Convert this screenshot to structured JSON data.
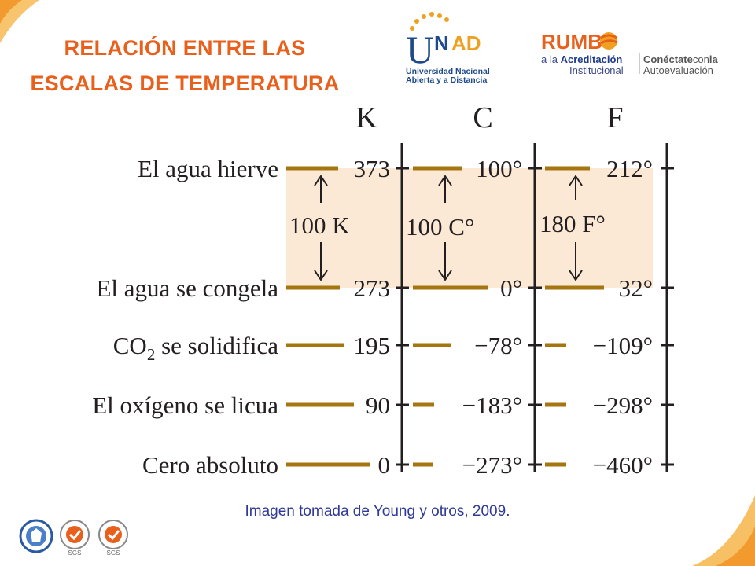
{
  "title": {
    "line1": "RELACIÓN ENTRE LAS",
    "line2": "ESCALAS DE TEMPERATURA"
  },
  "logos": {
    "unad_letters": "UNAD",
    "unad_line1": "Universidad Nacional",
    "unad_line2": "Abierta y a Distancia",
    "rumbo_word": "RUMB",
    "rumbo_line1_prefix": "a la ",
    "rumbo_line1_bold": "Acreditación",
    "rumbo_line2": "Institucional",
    "conectate_bold": "Conéctate",
    "conectate_light": "con",
    "conectate_bold2": "la",
    "autoevaluacion": "Autoevaluación",
    "sgs1": "SGS",
    "sgs2": "SGS"
  },
  "colors": {
    "title_orange": "#e8601c",
    "bar_gold": "#a57510",
    "shade": "#fbe9d6",
    "caption_blue": "#2f3a96"
  },
  "diagram": {
    "scale_headers": [
      "K",
      "C",
      "F"
    ],
    "rows": [
      {
        "label": "El agua hierve",
        "k": "373",
        "c": "100°",
        "f": "212°"
      },
      {
        "label": "El agua se congela",
        "k": "273",
        "c": "0°",
        "f": "32°"
      },
      {
        "label_main": "CO",
        "label_sub": "2",
        "label_rest": " se solidifica",
        "k": "195",
        "c": "−78°",
        "f": "−109°"
      },
      {
        "label": "El oxígeno se licua",
        "k": "90",
        "c": "−183°",
        "f": "−298°"
      },
      {
        "label": "Cero absoluto",
        "k": "0",
        "c": "−273°",
        "f": "−460°"
      }
    ],
    "interval_labels": [
      "100 K",
      "100 C°",
      "180 F°"
    ]
  },
  "caption": "Imagen tomada de Young y otros, 2009."
}
